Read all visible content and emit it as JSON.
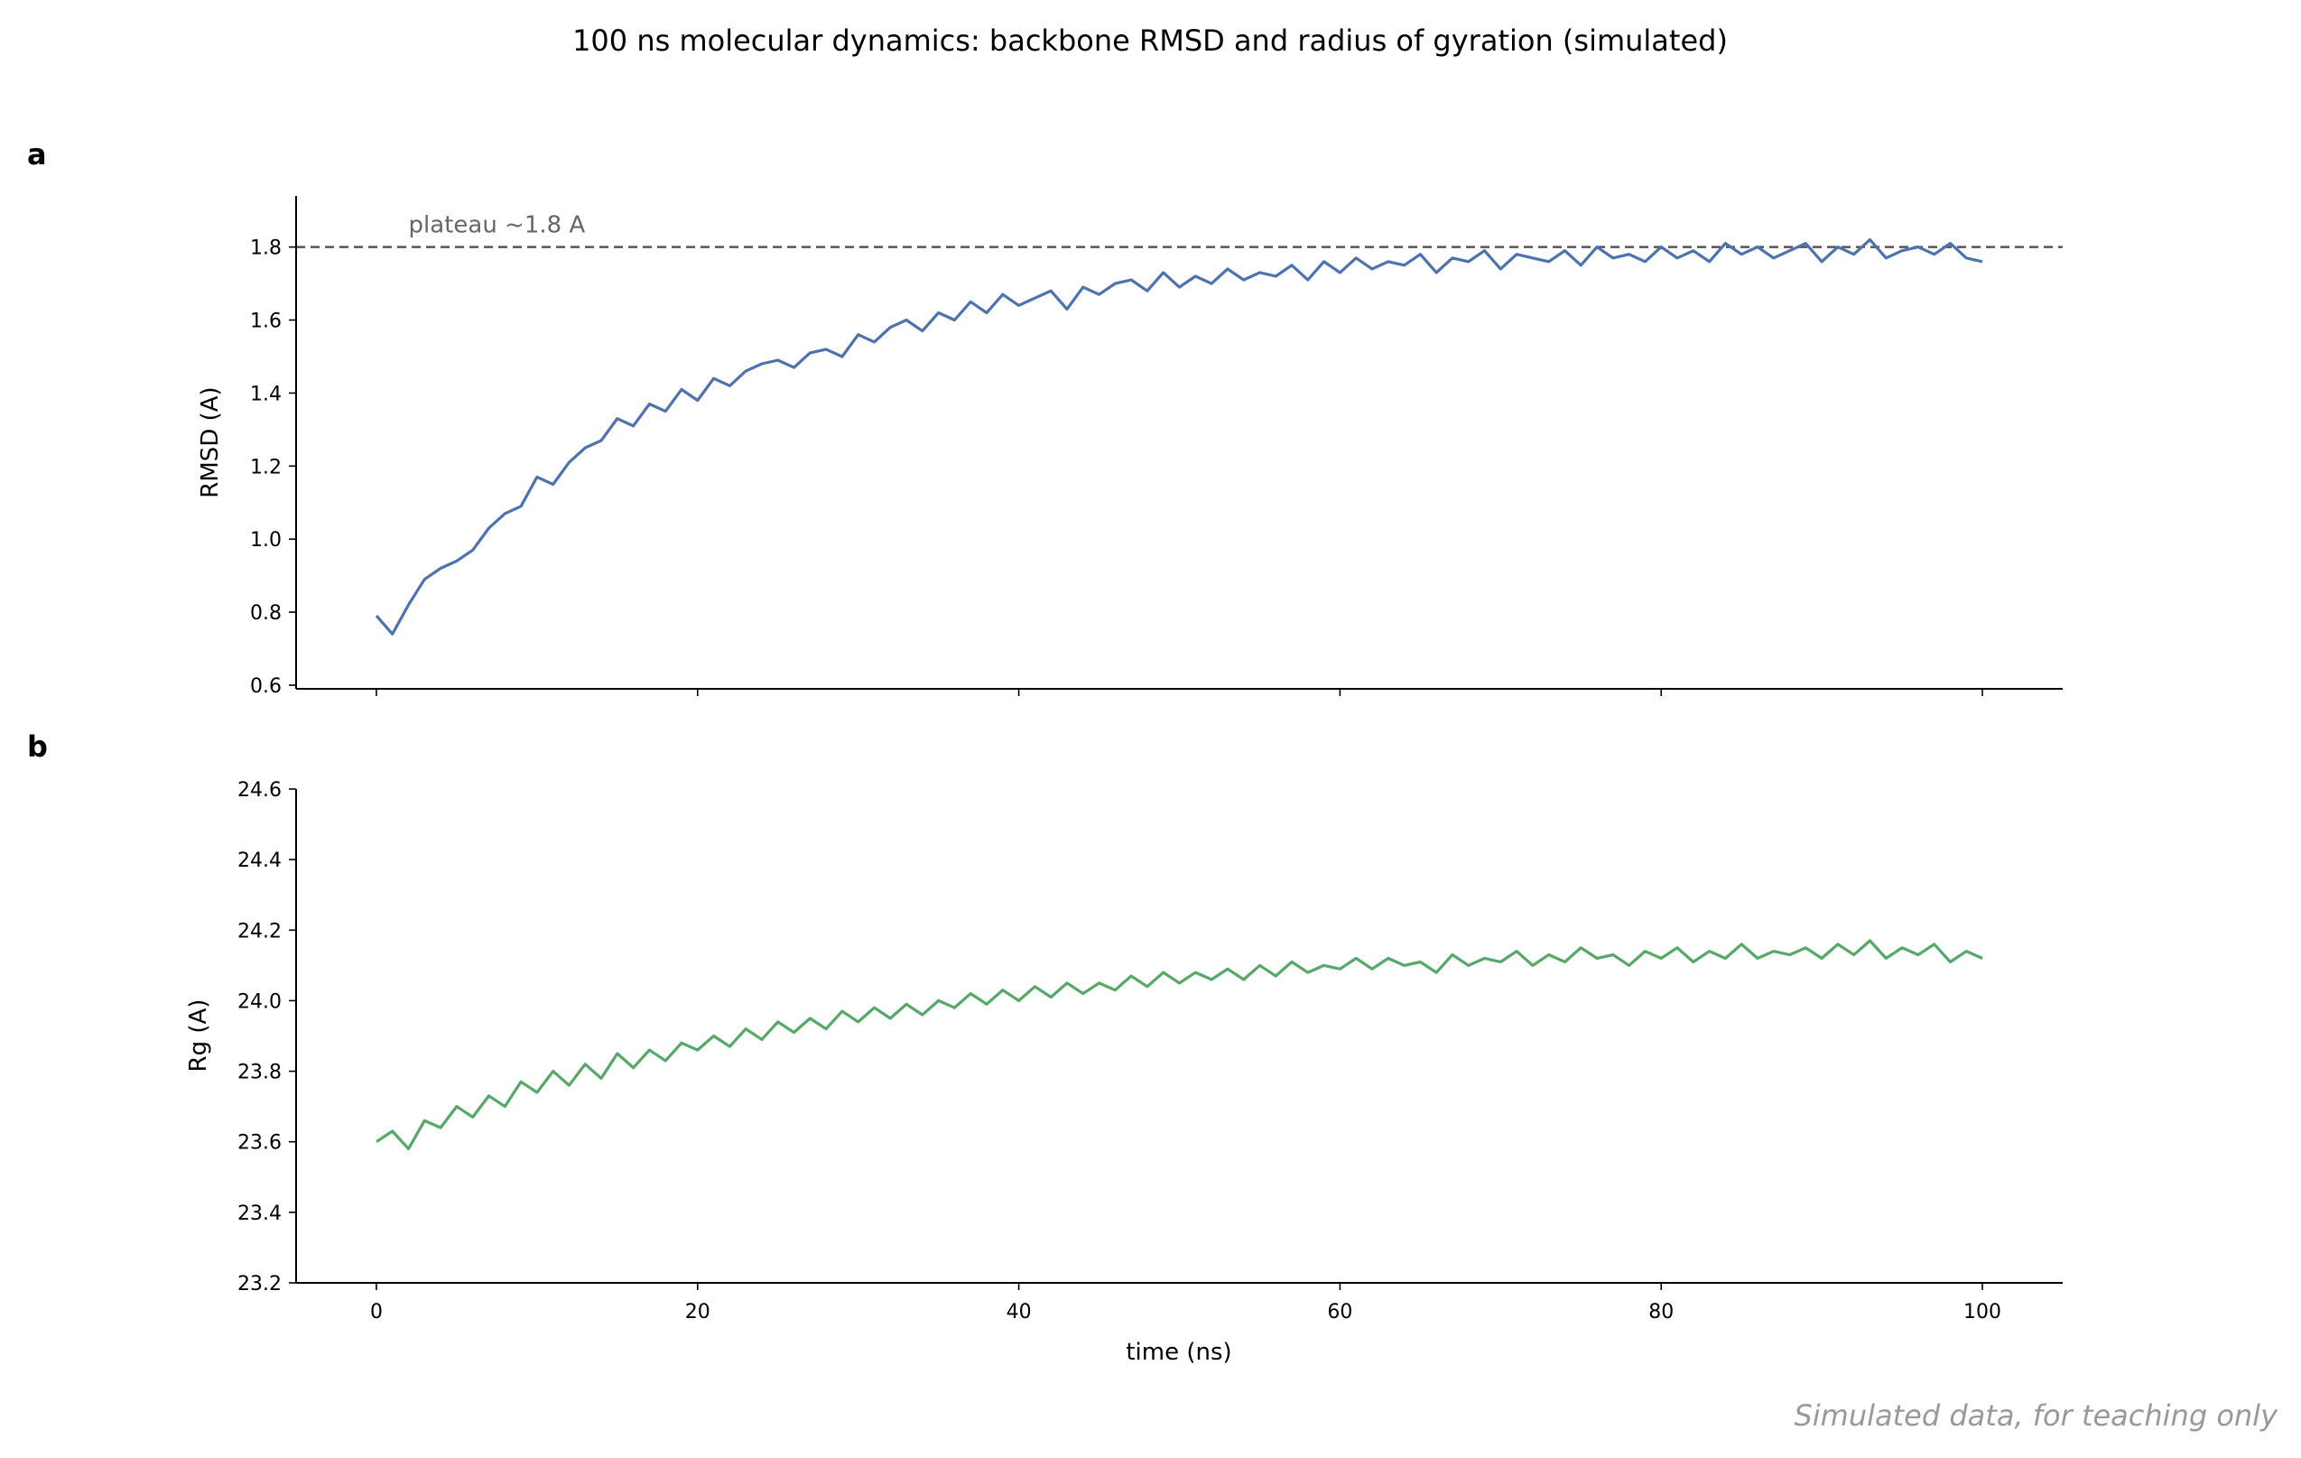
{
  "figure": {
    "title": "100 ns molecular dynamics: backbone RMSD and radius of gyration (simulated)",
    "footnote": "Simulated data, for teaching only"
  },
  "colors": {
    "rmsd_line": "#4c72b0",
    "rg_line": "#55a868",
    "reference_line": "#555555",
    "annotation": "#666666",
    "footnote": "#999999"
  },
  "chart_data": [
    {
      "panel": "a",
      "type": "line",
      "title": "",
      "xlabel": "",
      "ylabel": "RMSD (A)",
      "xlim": [
        -5,
        105
      ],
      "ylim": [
        0.59,
        1.94
      ],
      "xticks": [
        0,
        20,
        40,
        60,
        80,
        100
      ],
      "xtick_labels": [
        "",
        "",
        "",
        "",
        "",
        ""
      ],
      "yticks": [
        0.6,
        0.8,
        1.0,
        1.2,
        1.4,
        1.6,
        1.8
      ],
      "ytick_labels": [
        "0.6",
        "0.8",
        "1.0",
        "1.2",
        "1.4",
        "1.6",
        "1.8"
      ],
      "grid": false,
      "reference_line": {
        "y": 1.8,
        "style": "dashed",
        "label": "plateau ~1.8 A",
        "label_x": 2
      },
      "series": [
        {
          "x": [
            0,
            1,
            2,
            3,
            4,
            5,
            6,
            7,
            8,
            9,
            10,
            11,
            12,
            13,
            14,
            15,
            16,
            17,
            18,
            19,
            20,
            21,
            22,
            23,
            24,
            25,
            26,
            27,
            28,
            29,
            30,
            31,
            32,
            33,
            34,
            35,
            36,
            37,
            38,
            39,
            40,
            41,
            42,
            43,
            44,
            45,
            46,
            47,
            48,
            49,
            50,
            51,
            52,
            53,
            54,
            55,
            56,
            57,
            58,
            59,
            60,
            61,
            62,
            63,
            64,
            65,
            66,
            67,
            68,
            69,
            70,
            71,
            72,
            73,
            74,
            75,
            76,
            77,
            78,
            79,
            80,
            81,
            82,
            83,
            84,
            85,
            86,
            87,
            88,
            89,
            90,
            91,
            92,
            93,
            94,
            95,
            96,
            97,
            98,
            99,
            100
          ],
          "y": [
            0.79,
            0.74,
            0.82,
            0.89,
            0.92,
            0.94,
            0.97,
            1.03,
            1.07,
            1.09,
            1.17,
            1.15,
            1.21,
            1.25,
            1.27,
            1.33,
            1.31,
            1.37,
            1.35,
            1.41,
            1.38,
            1.44,
            1.42,
            1.46,
            1.48,
            1.49,
            1.47,
            1.51,
            1.52,
            1.5,
            1.56,
            1.54,
            1.58,
            1.6,
            1.57,
            1.62,
            1.6,
            1.65,
            1.62,
            1.67,
            1.64,
            1.66,
            1.68,
            1.63,
            1.69,
            1.67,
            1.7,
            1.71,
            1.68,
            1.73,
            1.69,
            1.72,
            1.7,
            1.74,
            1.71,
            1.73,
            1.72,
            1.75,
            1.71,
            1.76,
            1.73,
            1.77,
            1.74,
            1.76,
            1.75,
            1.78,
            1.73,
            1.77,
            1.76,
            1.79,
            1.74,
            1.78,
            1.77,
            1.76,
            1.79,
            1.75,
            1.8,
            1.77,
            1.78,
            1.76,
            1.8,
            1.77,
            1.79,
            1.76,
            1.81,
            1.78,
            1.8,
            1.77,
            1.79,
            1.81,
            1.76,
            1.8,
            1.78,
            1.82,
            1.77,
            1.79,
            1.8,
            1.78,
            1.81,
            1.77,
            1.76
          ]
        }
      ]
    },
    {
      "panel": "b",
      "type": "line",
      "title": "",
      "xlabel": "time (ns)",
      "ylabel": "Rg (A)",
      "xlim": [
        -5,
        105
      ],
      "ylim": [
        23.2,
        24.6
      ],
      "xticks": [
        0,
        20,
        40,
        60,
        80,
        100
      ],
      "xtick_labels": [
        "0",
        "20",
        "40",
        "60",
        "80",
        "100"
      ],
      "yticks": [
        23.2,
        23.4,
        23.6,
        23.8,
        24.0,
        24.2,
        24.4,
        24.6
      ],
      "ytick_labels": [
        "23.2",
        "23.4",
        "23.6",
        "23.8",
        "24.0",
        "24.2",
        "24.4",
        "24.6"
      ],
      "grid": false,
      "series": [
        {
          "x": [
            0,
            1,
            2,
            3,
            4,
            5,
            6,
            7,
            8,
            9,
            10,
            11,
            12,
            13,
            14,
            15,
            16,
            17,
            18,
            19,
            20,
            21,
            22,
            23,
            24,
            25,
            26,
            27,
            28,
            29,
            30,
            31,
            32,
            33,
            34,
            35,
            36,
            37,
            38,
            39,
            40,
            41,
            42,
            43,
            44,
            45,
            46,
            47,
            48,
            49,
            50,
            51,
            52,
            53,
            54,
            55,
            56,
            57,
            58,
            59,
            60,
            61,
            62,
            63,
            64,
            65,
            66,
            67,
            68,
            69,
            70,
            71,
            72,
            73,
            74,
            75,
            76,
            77,
            78,
            79,
            80,
            81,
            82,
            83,
            84,
            85,
            86,
            87,
            88,
            89,
            90,
            91,
            92,
            93,
            94,
            95,
            96,
            97,
            98,
            99,
            100
          ],
          "y": [
            23.6,
            23.63,
            23.58,
            23.66,
            23.64,
            23.7,
            23.67,
            23.73,
            23.7,
            23.77,
            23.74,
            23.8,
            23.76,
            23.82,
            23.78,
            23.85,
            23.81,
            23.86,
            23.83,
            23.88,
            23.86,
            23.9,
            23.87,
            23.92,
            23.89,
            23.94,
            23.91,
            23.95,
            23.92,
            23.97,
            23.94,
            23.98,
            23.95,
            23.99,
            23.96,
            24.0,
            23.98,
            24.02,
            23.99,
            24.03,
            24.0,
            24.04,
            24.01,
            24.05,
            24.02,
            24.05,
            24.03,
            24.07,
            24.04,
            24.08,
            24.05,
            24.08,
            24.06,
            24.09,
            24.06,
            24.1,
            24.07,
            24.11,
            24.08,
            24.1,
            24.09,
            24.12,
            24.09,
            24.12,
            24.1,
            24.11,
            24.08,
            24.13,
            24.1,
            24.12,
            24.11,
            24.14,
            24.1,
            24.13,
            24.11,
            24.15,
            24.12,
            24.13,
            24.1,
            24.14,
            24.12,
            24.15,
            24.11,
            24.14,
            24.12,
            24.16,
            24.12,
            24.14,
            24.13,
            24.15,
            24.12,
            24.16,
            24.13,
            24.17,
            24.12,
            24.15,
            24.13,
            24.16,
            24.11,
            24.14,
            24.12
          ]
        }
      ]
    }
  ]
}
